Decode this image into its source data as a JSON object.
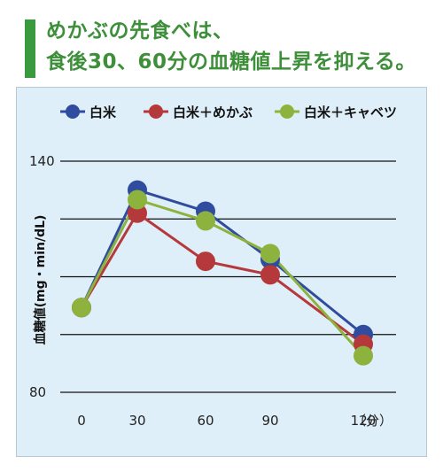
{
  "title": {
    "line1": "めかぶの先食べは、",
    "line2": "食後30、60分の血糖値上昇を抑える。"
  },
  "chart_data": {
    "type": "line",
    "x": [
      0,
      30,
      60,
      90,
      120
    ],
    "xticks": [
      "0",
      "30",
      "60",
      "90",
      "120"
    ],
    "xunit": "（分）",
    "ylabel": "血糖値(mg・min/dL)",
    "yticks": [
      "140",
      "80"
    ],
    "ylim": [
      80,
      140
    ],
    "grid": true,
    "legend_position": "top",
    "series": [
      {
        "name": "白米",
        "color": "#2f4c9e",
        "values": [
          102,
          132.5,
          127,
          114.5,
          95
        ]
      },
      {
        "name": "白米＋めかぶ",
        "color": "#b5393a",
        "values": [
          102,
          126.5,
          114,
          110.5,
          92.5
        ]
      },
      {
        "name": "白米＋キャベツ",
        "color": "#8db33e",
        "values": [
          102,
          130,
          124.5,
          116,
          89.5
        ]
      }
    ]
  }
}
